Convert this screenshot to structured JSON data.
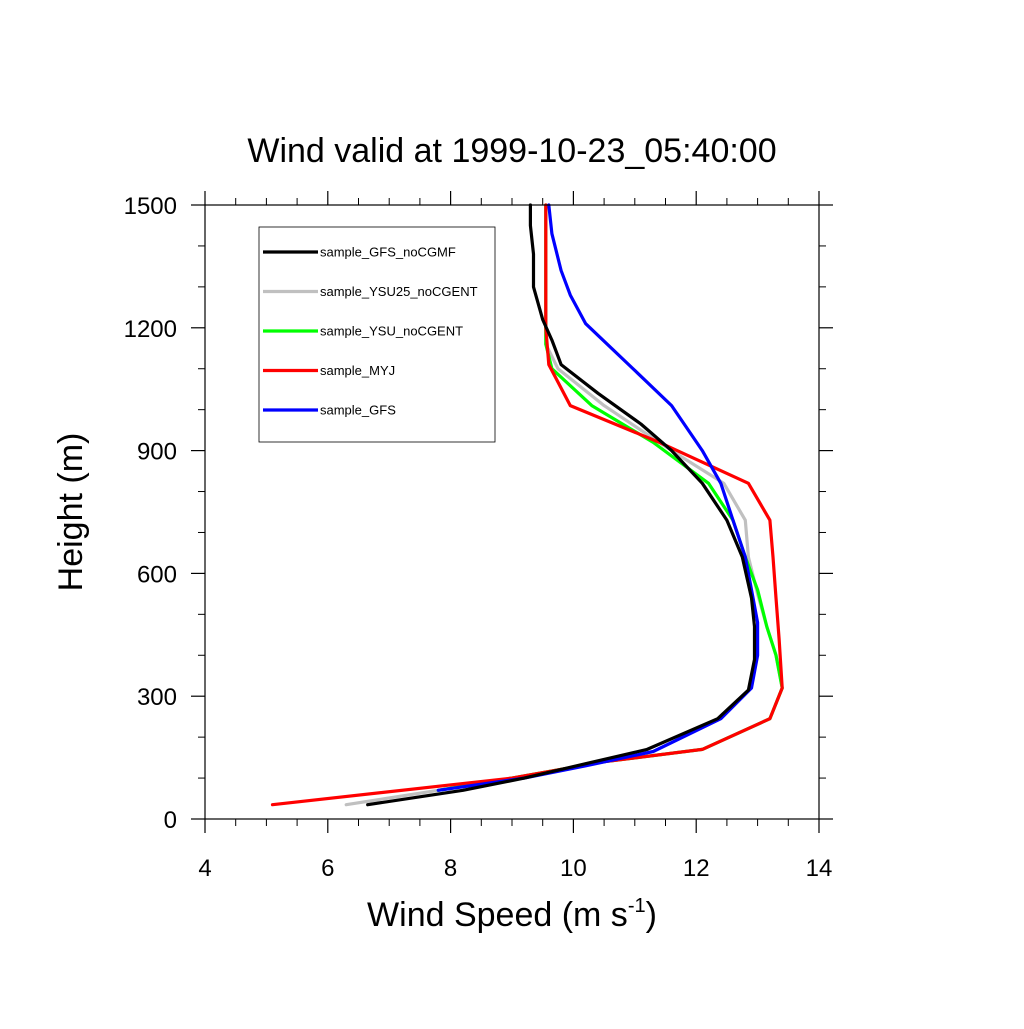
{
  "chart_data": {
    "type": "line",
    "title": "Wind valid at 1999-10-23_05:40:00",
    "xlabel": "Wind Speed (m s",
    "xlabel_sup": "-1",
    "xlabel_end": ")",
    "ylabel": "Height (m)",
    "xlim": [
      4,
      14
    ],
    "ylim": [
      0,
      1500
    ],
    "xticks": [
      4,
      6,
      8,
      10,
      12,
      14
    ],
    "yticks": [
      0,
      300,
      600,
      900,
      1200,
      1500
    ],
    "grid": false,
    "legend_position": "top-left",
    "series": [
      {
        "name": "sample_GFS_noCGMF",
        "color": "#000000",
        "points": [
          [
            6.65,
            35
          ],
          [
            8.2,
            70
          ],
          [
            9.2,
            100
          ],
          [
            10.2,
            135
          ],
          [
            11.2,
            170
          ],
          [
            12.35,
            245
          ],
          [
            12.85,
            315
          ],
          [
            12.95,
            390
          ],
          [
            12.95,
            470
          ],
          [
            12.9,
            540
          ],
          [
            12.75,
            640
          ],
          [
            12.5,
            730
          ],
          [
            12.1,
            820
          ],
          [
            11.6,
            900
          ],
          [
            11.1,
            965
          ],
          [
            10.4,
            1040
          ],
          [
            9.8,
            1110
          ],
          [
            9.65,
            1170
          ],
          [
            9.5,
            1220
          ],
          [
            9.35,
            1300
          ],
          [
            9.35,
            1380
          ],
          [
            9.3,
            1450
          ],
          [
            9.3,
            1500
          ]
        ]
      },
      {
        "name": "sample_YSU25_noCGENT",
        "color": "#c0c0c0",
        "points": [
          [
            6.3,
            35
          ],
          [
            7.8,
            70
          ],
          [
            9.0,
            100
          ],
          [
            10.5,
            140
          ],
          [
            12.1,
            170
          ],
          [
            13.2,
            245
          ],
          [
            13.4,
            320
          ],
          [
            13.3,
            400
          ],
          [
            13.15,
            470
          ],
          [
            13.0,
            550
          ],
          [
            12.85,
            640
          ],
          [
            12.8,
            730
          ],
          [
            12.45,
            820
          ],
          [
            11.6,
            900
          ],
          [
            10.5,
            1010
          ],
          [
            9.75,
            1100
          ],
          [
            9.55,
            1160
          ],
          [
            9.55,
            1240
          ],
          [
            9.55,
            1350
          ],
          [
            9.55,
            1450
          ],
          [
            9.55,
            1500
          ]
        ]
      },
      {
        "name": "sample_YSU_noCGENT",
        "color": "#00ff00",
        "points": [
          [
            7.8,
            70
          ],
          [
            9.0,
            100
          ],
          [
            10.5,
            140
          ],
          [
            12.1,
            170
          ],
          [
            13.2,
            245
          ],
          [
            13.4,
            320
          ],
          [
            13.3,
            400
          ],
          [
            13.15,
            470
          ],
          [
            13.0,
            560
          ],
          [
            12.8,
            640
          ],
          [
            12.6,
            730
          ],
          [
            12.2,
            820
          ],
          [
            11.3,
            920
          ],
          [
            10.3,
            1010
          ],
          [
            9.65,
            1100
          ],
          [
            9.55,
            1160
          ],
          [
            9.55,
            1240
          ],
          [
            9.55,
            1350
          ],
          [
            9.55,
            1450
          ],
          [
            9.55,
            1500
          ]
        ]
      },
      {
        "name": "sample_MYJ",
        "color": "#ff0000",
        "points": [
          [
            5.1,
            35
          ],
          [
            9.0,
            100
          ],
          [
            10.5,
            140
          ],
          [
            12.1,
            170
          ],
          [
            13.2,
            245
          ],
          [
            13.4,
            320
          ],
          [
            13.35,
            440
          ],
          [
            13.3,
            540
          ],
          [
            13.25,
            640
          ],
          [
            13.2,
            730
          ],
          [
            12.85,
            820
          ],
          [
            11.4,
            920
          ],
          [
            9.95,
            1010
          ],
          [
            9.6,
            1110
          ],
          [
            9.55,
            1200
          ],
          [
            9.55,
            1300
          ],
          [
            9.55,
            1400
          ],
          [
            9.55,
            1500
          ]
        ]
      },
      {
        "name": "sample_GFS",
        "color": "#0000ff",
        "points": [
          [
            7.8,
            70
          ],
          [
            9.2,
            100
          ],
          [
            10.2,
            130
          ],
          [
            11.3,
            165
          ],
          [
            12.4,
            245
          ],
          [
            12.9,
            320
          ],
          [
            13.0,
            400
          ],
          [
            13.0,
            480
          ],
          [
            12.9,
            560
          ],
          [
            12.8,
            640
          ],
          [
            12.6,
            730
          ],
          [
            12.4,
            820
          ],
          [
            12.1,
            900
          ],
          [
            11.6,
            1010
          ],
          [
            10.9,
            1110
          ],
          [
            10.2,
            1210
          ],
          [
            9.95,
            1280
          ],
          [
            9.8,
            1340
          ],
          [
            9.65,
            1430
          ],
          [
            9.6,
            1500
          ]
        ]
      }
    ]
  }
}
